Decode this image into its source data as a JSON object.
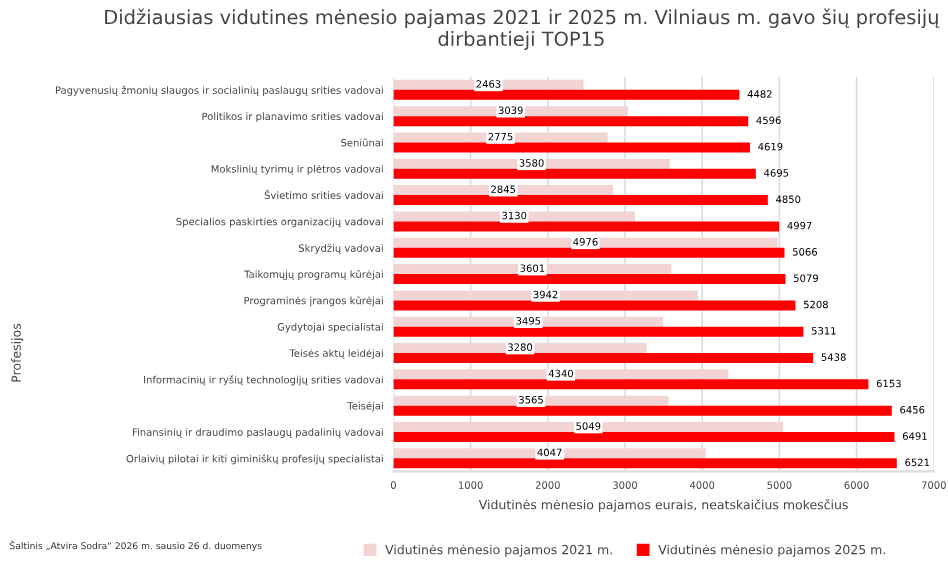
{
  "chart_data": {
    "type": "bar",
    "orientation": "horizontal",
    "title": "Didžiausias vidutines mėnesio pajamas 2021 ir 2025 m. Vilniaus m. gavo šių profesijų dirbantieji TOP15",
    "xlabel": "Vidutinės mėnesio pajamos eurais, neatskaičius mokesčius",
    "ylabel": "Profesijos",
    "categories": [
      "Pagyvenusių žmonių slaugos ir socialinių paslaugų srities vadovai",
      "Politikos ir planavimo srities vadovai",
      "Seniūnai",
      "Mokslinių tyrimų ir plėtros vadovai",
      "Švietimo srities vadovai",
      "Specialios paskirties organizacijų vadovai",
      "Skrydžių vadovai",
      "Taikomųjų programų kūrėjai",
      "Programinės įrangos kūrėjai",
      "Gydytojai specialistai",
      "Teisės aktų leidėjai",
      "Informacinių ir ryšių technologijų srities vadovai",
      "Teisėjai",
      "Finansinių ir draudimo paslaugų padalinių vadovai",
      "Orlaivių pilotai ir kiti giminiškų profesijų specialistai"
    ],
    "series": [
      {
        "name": "Vidutinės mėnesio pajamos 2021 m.",
        "color": "#f2d4d4",
        "values": [
          2463,
          3039,
          2775,
          3580,
          2845,
          3130,
          4976,
          3601,
          3942,
          3495,
          3280,
          4340,
          3565,
          5049,
          4047
        ]
      },
      {
        "name": "Vidutinės mėnesio pajamos 2025 m.",
        "color": "#ff0000",
        "values": [
          4482,
          4596,
          4619,
          4695,
          4850,
          4997,
          5066,
          5079,
          5208,
          5311,
          5438,
          6153,
          6456,
          6491,
          6521
        ]
      }
    ],
    "xlim": [
      0,
      7000
    ],
    "xticks": [
      0,
      1000,
      2000,
      3000,
      4000,
      5000,
      6000,
      7000
    ],
    "grid": "x",
    "legend": "bottom",
    "data_labels": true,
    "annotations": [
      "Šaltinis „Atvira Sodra“ 2026 m. sausio 26 d. duomenys"
    ]
  }
}
